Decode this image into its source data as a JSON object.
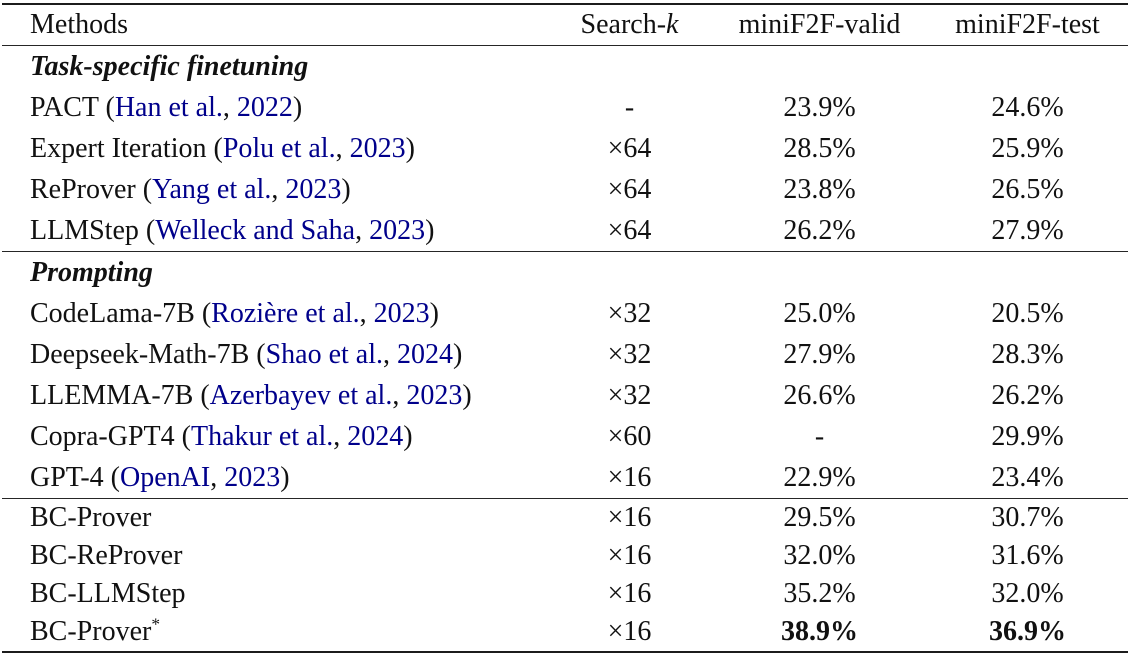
{
  "table": {
    "colors": {
      "citation": "#00008B",
      "text": "#111111",
      "rule": "#1c1c1c"
    },
    "headers": {
      "methods": "Methods",
      "search_prefix": "Search-",
      "search_k_var": "k",
      "valid": "miniF2F-valid",
      "test": "miniF2F-test"
    },
    "rows": [
      {
        "type": "section",
        "label": "Task-specific finetuning"
      },
      {
        "prefix": "PACT (",
        "author": "Han et al.",
        "sep": ", ",
        "year": "2022",
        "suffix": ")",
        "k": "-",
        "valid": "23.9%",
        "test": "24.6%"
      },
      {
        "prefix": "Expert Iteration (",
        "author": "Polu et al.",
        "sep": ", ",
        "year": "2023",
        "suffix": ")",
        "k": "×64",
        "valid": "28.5%",
        "test": "25.9%"
      },
      {
        "prefix": "ReProver (",
        "author": "Yang et al.",
        "sep": ", ",
        "year": "2023",
        "suffix": ")",
        "k": "×64",
        "valid": "23.8%",
        "test": "26.5%"
      },
      {
        "prefix": "LLMStep (",
        "author": "Welleck and Saha",
        "sep": ", ",
        "year": "2023",
        "suffix": ")",
        "k": "×64",
        "valid": "26.2%",
        "test": "27.9%"
      },
      {
        "type": "section",
        "label": "Prompting"
      },
      {
        "prefix": "CodeLama-7B (",
        "author": "Rozière et al.",
        "sep": ", ",
        "year": "2023",
        "suffix": ")",
        "k": "×32",
        "valid": "25.0%",
        "test": "20.5%"
      },
      {
        "prefix": "Deepseek-Math-7B (",
        "author": "Shao et al.",
        "sep": ", ",
        "year": "2024",
        "suffix": ")",
        "k": "×32",
        "valid": "27.9%",
        "test": "28.3%"
      },
      {
        "prefix": "LLEMMA-7B (",
        "author": "Azerbayev et al.",
        "sep": ", ",
        "year": "2023",
        "suffix": ")",
        "k": "×32",
        "valid": "26.6%",
        "test": "26.2%"
      },
      {
        "prefix": "Copra-GPT4 (",
        "author": "Thakur et al.",
        "sep": ", ",
        "year": "2024",
        "suffix": ")",
        "k": "×60",
        "valid": "-",
        "test": "29.9%"
      },
      {
        "prefix": "GPT-4 (",
        "author": "OpenAI",
        "sep": ", ",
        "year": "2023",
        "suffix": ")",
        "k": "×16",
        "valid": "22.9%",
        "test": "23.4%"
      },
      {
        "prefix": "BC-Prover",
        "k": "×16",
        "valid": "29.5%",
        "test": "30.7%"
      },
      {
        "prefix": "BC-ReProver",
        "k": "×16",
        "valid": "32.0%",
        "test": "31.6%"
      },
      {
        "prefix": "BC-LLMStep",
        "k": "×16",
        "valid": "35.2%",
        "test": "32.0%"
      },
      {
        "prefix": "BC-Prover",
        "sup": "*",
        "k": "×16",
        "valid": "38.9%",
        "test": "36.9%",
        "emphasis": "bold"
      }
    ]
  }
}
